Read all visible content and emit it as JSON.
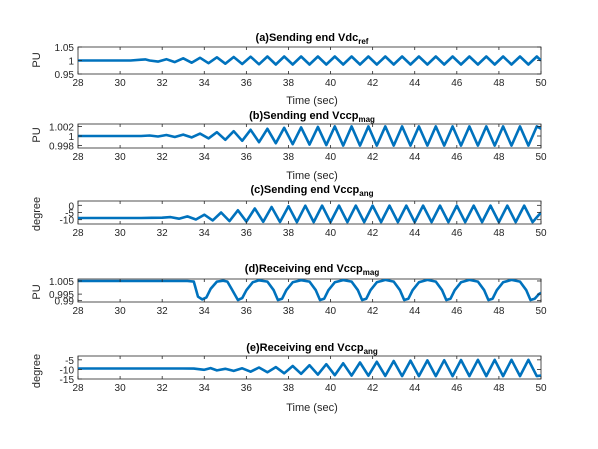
{
  "chart_data": [
    {
      "type": "line",
      "title": "(a)Sending end Vdc",
      "title_sub": "ref",
      "xlabel": "Time (sec)",
      "ylabel": "PU",
      "xlim": [
        28,
        50
      ],
      "ylim": [
        0.95,
        1.05
      ],
      "xticks": [
        "28",
        "30",
        "32",
        "34",
        "36",
        "38",
        "40",
        "42",
        "44",
        "46",
        "48",
        "50"
      ],
      "yticks": [
        "0.95",
        "1",
        "1.05"
      ],
      "yticks_values": [
        0.95,
        1.0,
        1.05
      ],
      "color": "#0072BD",
      "series": [
        {
          "x": [
            28,
            28.5,
            29,
            29.5,
            30,
            30.5,
            31,
            31.2,
            31.4,
            31.8,
            32.2,
            32.6,
            33.0,
            33.4,
            33.8,
            34.2,
            34.6,
            35.0,
            35.4,
            35.8,
            36.2,
            36.6,
            37.0,
            37.4,
            37.8,
            38.2,
            38.6,
            39.0,
            39.4,
            39.8,
            40.2,
            40.6,
            41.0,
            41.4,
            41.8,
            42.2,
            42.6,
            43.0,
            43.4,
            43.8,
            44.2,
            44.6,
            45.0,
            45.4,
            45.8,
            46.2,
            46.6,
            47.0,
            47.4,
            47.8,
            48.2,
            48.6,
            49.0,
            49.4,
            49.8,
            50.0
          ],
          "y": [
            1.0,
            1.0,
            1.0,
            1.0,
            1.0,
            1.0,
            1.003,
            1.004,
            1.0,
            0.996,
            1.005,
            0.994,
            1.008,
            0.992,
            1.01,
            0.99,
            1.012,
            0.988,
            1.013,
            0.987,
            1.014,
            0.986,
            1.015,
            0.985,
            1.015,
            0.985,
            1.015,
            0.985,
            1.015,
            0.985,
            1.015,
            0.985,
            1.015,
            0.985,
            1.015,
            0.985,
            1.015,
            0.985,
            1.015,
            0.985,
            1.015,
            0.985,
            1.015,
            0.985,
            1.015,
            0.985,
            1.015,
            0.985,
            1.015,
            0.985,
            1.015,
            0.985,
            1.015,
            0.985,
            1.015,
            1.0
          ]
        }
      ]
    },
    {
      "type": "line",
      "title": "(b)Sending end Vccp",
      "title_sub": "mag",
      "xlabel": "Time (sec)",
      "ylabel": "PU",
      "xlim": [
        28,
        50
      ],
      "ylim": [
        0.9975,
        1.0025
      ],
      "xticks": [
        "28",
        "30",
        "32",
        "34",
        "36",
        "38",
        "40",
        "42",
        "44",
        "46",
        "48",
        "50"
      ],
      "yticks": [
        "0.998",
        "1",
        "1.002"
      ],
      "yticks_values": [
        0.998,
        1.0,
        1.002
      ],
      "color": "#0072BD",
      "series": [
        {
          "x": [
            28,
            29,
            30,
            30.5,
            31,
            31.4,
            31.8,
            32.2,
            32.6,
            33.0,
            33.4,
            33.8,
            34.2,
            34.6,
            35.0,
            35.4,
            35.8,
            36.2,
            36.6,
            37.0,
            37.4,
            37.8,
            38.2,
            38.6,
            39.0,
            39.4,
            39.8,
            40.2,
            40.6,
            41.0,
            41.4,
            41.8,
            42.2,
            42.6,
            43.0,
            43.4,
            43.8,
            44.2,
            44.6,
            45.0,
            45.4,
            45.8,
            46.2,
            46.6,
            47.0,
            47.4,
            47.8,
            48.2,
            48.6,
            49.0,
            49.4,
            49.8,
            50.0
          ],
          "y": [
            1.0,
            1.0,
            1.0,
            1.0,
            1.0,
            1.0001,
            0.9999,
            1.0002,
            0.9998,
            1.0003,
            0.9997,
            1.0005,
            0.9995,
            1.0008,
            0.9992,
            1.001,
            0.999,
            1.0013,
            0.9987,
            1.0015,
            0.9985,
            1.0017,
            0.9983,
            1.0018,
            0.9982,
            1.0019,
            0.9981,
            1.002,
            0.998,
            1.002,
            0.998,
            1.002,
            0.998,
            1.002,
            0.998,
            1.002,
            0.998,
            1.002,
            0.998,
            1.002,
            0.998,
            1.002,
            0.998,
            1.002,
            0.998,
            1.002,
            0.998,
            1.002,
            0.998,
            1.002,
            0.998,
            1.002,
            1.0015
          ]
        }
      ]
    },
    {
      "type": "line",
      "title": "(c)Sending end Vccp",
      "title_sub": "ang",
      "xlabel": "",
      "ylabel": "degree",
      "xlim": [
        28,
        50
      ],
      "ylim": [
        -13,
        3
      ],
      "xticks": [
        "28",
        "30",
        "32",
        "34",
        "36",
        "38",
        "40",
        "42",
        "44",
        "46",
        "48",
        "50"
      ],
      "yticks": [
        "-10",
        "-5",
        "0"
      ],
      "yticks_values": [
        -10,
        -5,
        0
      ],
      "color": "#0072BD",
      "series": [
        {
          "x": [
            28,
            29,
            30,
            31,
            31.5,
            32,
            32.4,
            32.8,
            33.2,
            33.6,
            34.0,
            34.4,
            34.8,
            35.2,
            35.6,
            36.0,
            36.4,
            36.8,
            37.2,
            37.6,
            38.0,
            38.4,
            38.8,
            39.2,
            39.6,
            40.0,
            40.4,
            40.8,
            41.2,
            41.6,
            42.0,
            42.4,
            42.8,
            43.2,
            43.6,
            44.0,
            44.4,
            44.8,
            45.2,
            45.6,
            46.0,
            46.4,
            46.8,
            47.2,
            47.6,
            48.0,
            48.4,
            48.8,
            49.2,
            49.6,
            50.0
          ],
          "y": [
            -8.8,
            -8.8,
            -8.8,
            -8.8,
            -8.7,
            -8.6,
            -8.2,
            -9.3,
            -7.7,
            -9.9,
            -6.5,
            -10.5,
            -5.0,
            -11.0,
            -3.5,
            -11.3,
            -2.2,
            -11.5,
            -1.2,
            -11.6,
            -0.6,
            -11.7,
            -0.3,
            -11.7,
            -0.2,
            -11.7,
            -0.2,
            -11.7,
            -0.2,
            -11.7,
            -0.2,
            -11.7,
            -0.2,
            -11.7,
            -0.2,
            -11.7,
            -0.2,
            -11.7,
            -0.2,
            -11.7,
            -0.2,
            -11.7,
            -0.2,
            -11.7,
            -0.2,
            -11.7,
            -0.2,
            -11.7,
            -0.2,
            -11.7,
            -5.0
          ]
        }
      ]
    },
    {
      "type": "line",
      "title": "(d)Receiving end Vccp",
      "title_sub": "mag",
      "xlabel": "",
      "ylabel": "PU",
      "xlim": [
        28,
        50
      ],
      "ylim": [
        0.989,
        1.0065
      ],
      "xticks": [
        "28",
        "30",
        "32",
        "34",
        "36",
        "38",
        "40",
        "42",
        "44",
        "46",
        "48",
        "50"
      ],
      "yticks": [
        "0.99",
        "0.995",
        "1.005"
      ],
      "yticks_values": [
        0.99,
        0.995,
        1.005
      ],
      "color": "#0072BD",
      "series": [
        {
          "x": [
            28,
            30,
            32,
            33.2,
            33.5,
            33.7,
            33.9,
            34.1,
            34.3,
            34.6,
            34.9,
            35.1,
            35.3,
            35.6,
            35.8,
            36.0,
            36.3,
            36.6,
            37.0,
            37.3,
            37.5,
            37.7,
            37.9,
            38.2,
            38.6,
            39.0,
            39.3,
            39.5,
            39.7,
            39.9,
            40.2,
            40.6,
            41.0,
            41.3,
            41.5,
            41.7,
            41.9,
            42.2,
            42.6,
            43.0,
            43.3,
            43.5,
            43.7,
            43.9,
            44.2,
            44.6,
            45.0,
            45.3,
            45.5,
            45.7,
            45.9,
            46.2,
            46.6,
            47.0,
            47.3,
            47.5,
            47.7,
            47.9,
            48.2,
            48.6,
            49.0,
            49.3,
            49.5,
            49.7,
            49.9,
            50.0
          ],
          "y": [
            1.005,
            1.005,
            1.005,
            1.005,
            1.0045,
            0.993,
            0.991,
            0.9925,
            0.999,
            1.0045,
            1.0052,
            1.0045,
            0.999,
            0.9905,
            0.992,
            0.998,
            1.004,
            1.0055,
            1.0045,
            0.998,
            0.9905,
            0.9915,
            0.998,
            1.004,
            1.0056,
            1.0045,
            0.998,
            0.9905,
            0.9915,
            0.998,
            1.004,
            1.0057,
            1.0045,
            0.998,
            0.9905,
            0.9915,
            0.998,
            1.004,
            1.0058,
            1.0045,
            0.998,
            0.9905,
            0.9915,
            0.998,
            1.004,
            1.0058,
            1.0045,
            0.998,
            0.9905,
            0.9915,
            0.998,
            1.004,
            1.0058,
            1.0045,
            0.998,
            0.9905,
            0.9915,
            0.998,
            1.004,
            1.0058,
            1.0045,
            0.998,
            0.9905,
            0.9915,
            0.995,
            0.996
          ]
        }
      ]
    },
    {
      "type": "line",
      "title": "(e)Receiving end  Vccp",
      "title_sub": "ang",
      "xlabel": "Time (sec)",
      "ylabel": "degree",
      "xlim": [
        28,
        50
      ],
      "ylim": [
        -15,
        -3
      ],
      "xticks": [
        "28",
        "30",
        "32",
        "34",
        "36",
        "38",
        "40",
        "42",
        "44",
        "46",
        "48",
        "50"
      ],
      "yticks": [
        "-15",
        "-10",
        "-5"
      ],
      "yticks_values": [
        -15,
        -10,
        -5
      ],
      "color": "#0072BD",
      "series": [
        {
          "x": [
            28,
            29,
            30,
            31,
            32,
            33,
            33.5,
            34.0,
            34.3,
            34.6,
            35.0,
            35.4,
            35.8,
            36.2,
            36.6,
            37.0,
            37.4,
            37.8,
            38.2,
            38.6,
            39.0,
            39.4,
            39.8,
            40.2,
            40.6,
            41.0,
            41.4,
            41.8,
            42.2,
            42.6,
            43.0,
            43.4,
            43.8,
            44.2,
            44.6,
            45.0,
            45.4,
            45.8,
            46.2,
            46.6,
            47.0,
            47.4,
            47.8,
            48.2,
            48.6,
            49.0,
            49.4,
            49.8,
            50.0
          ],
          "y": [
            -9.5,
            -9.5,
            -9.5,
            -9.5,
            -9.5,
            -9.5,
            -9.6,
            -10.2,
            -9.3,
            -10.5,
            -9.7,
            -10.8,
            -9.4,
            -11.2,
            -9.0,
            -11.5,
            -8.8,
            -12.0,
            -8.2,
            -12.3,
            -7.8,
            -12.7,
            -7.3,
            -13.0,
            -6.8,
            -13.2,
            -6.4,
            -13.3,
            -6.0,
            -13.4,
            -5.6,
            -13.5,
            -5.4,
            -13.5,
            -5.3,
            -13.5,
            -5.2,
            -13.5,
            -5.1,
            -13.5,
            -5.0,
            -13.5,
            -5.0,
            -13.5,
            -5.0,
            -13.5,
            -5.0,
            -13.5,
            -13.2
          ]
        }
      ]
    }
  ]
}
